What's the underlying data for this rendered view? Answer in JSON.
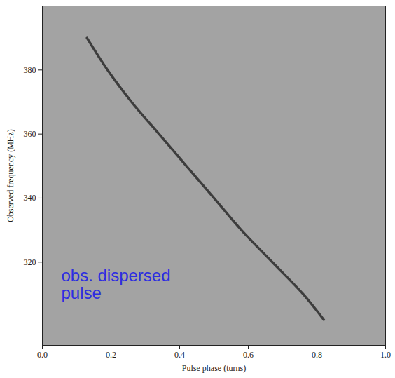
{
  "chart_data": {
    "type": "line",
    "xlabel": "Pulse phase (turns)",
    "ylabel": "Observed frequency (MHz)",
    "x": [
      0.13,
      0.19,
      0.26,
      0.34,
      0.42,
      0.5,
      0.58,
      0.67,
      0.76,
      0.82
    ],
    "values": [
      390,
      380,
      370,
      360,
      350,
      340,
      330,
      320,
      310,
      302
    ],
    "color": "#2b2b2b",
    "xlim": [
      0,
      1
    ],
    "xticks": [
      {
        "value": 0,
        "label": "0.0"
      },
      0.2,
      0.4,
      0.6,
      0.8,
      {
        "value": 1,
        "label": "1.0"
      }
    ],
    "ylim": [
      294,
      400
    ],
    "yticks": [
      320,
      340,
      360,
      380
    ],
    "grid": false,
    "annotations": [
      {
        "text": "obs. dispersed\npulse",
        "x": 0.055,
        "y": 313,
        "color": "#2d2de0"
      }
    ]
  }
}
